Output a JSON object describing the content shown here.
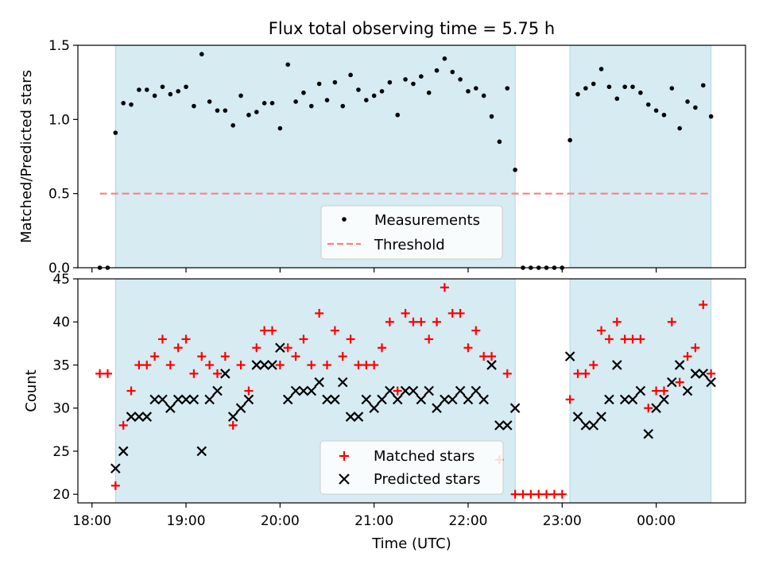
{
  "colors": {
    "band": "#add8e6",
    "measurement": "#000000",
    "threshold": "#ff7f7f",
    "matched": "#ff0000",
    "predicted": "#000000"
  },
  "chart_data": [
    {
      "type": "scatter",
      "title": "Flux total observing time = 5.75 h",
      "xlabel": "",
      "ylabel": "Matched/Predicted stars",
      "xlim": [
        "17:51",
        "00:57"
      ],
      "ylim": [
        0,
        1.5
      ],
      "yticks": [
        "0.0",
        "0.5",
        "1.0",
        "1.5"
      ],
      "legend_position": "lower center",
      "bands": [
        [
          "18:15",
          "22:30"
        ],
        [
          "23:05",
          "00:35"
        ]
      ],
      "threshold": {
        "name": "Threshold",
        "style": "dashed",
        "y": 0.5,
        "x": [
          "18:05",
          "00:35"
        ]
      },
      "series": [
        {
          "name": "Measurements",
          "style": "dot",
          "x": [
            "18:05",
            "18:10",
            "18:15",
            "18:20",
            "18:25",
            "18:30",
            "18:35",
            "18:40",
            "18:45",
            "18:50",
            "18:55",
            "19:00",
            "19:05",
            "19:10",
            "19:15",
            "19:20",
            "19:25",
            "19:30",
            "19:35",
            "19:40",
            "19:45",
            "19:50",
            "19:55",
            "20:00",
            "20:05",
            "20:10",
            "20:15",
            "20:20",
            "20:25",
            "20:30",
            "20:35",
            "20:40",
            "20:45",
            "20:50",
            "20:55",
            "21:00",
            "21:05",
            "21:10",
            "21:15",
            "21:20",
            "21:25",
            "21:30",
            "21:35",
            "21:40",
            "21:45",
            "21:50",
            "21:55",
            "22:00",
            "22:05",
            "22:10",
            "22:15",
            "22:20",
            "22:25",
            "22:30",
            "22:35",
            "22:40",
            "22:45",
            "22:50",
            "22:55",
            "23:00",
            "23:05",
            "23:10",
            "23:15",
            "23:20",
            "23:25",
            "23:30",
            "23:35",
            "23:40",
            "23:45",
            "23:50",
            "23:55",
            "00:00",
            "00:05",
            "00:10",
            "00:15",
            "00:20",
            "00:25",
            "00:30",
            "00:35"
          ],
          "y": [
            0.0,
            0.0,
            0.91,
            1.11,
            1.1,
            1.2,
            1.2,
            1.16,
            1.22,
            1.17,
            1.19,
            1.22,
            1.09,
            1.44,
            1.12,
            1.06,
            1.06,
            0.96,
            1.16,
            1.03,
            1.05,
            1.11,
            1.11,
            0.94,
            1.37,
            1.12,
            1.18,
            1.09,
            1.24,
            1.13,
            1.25,
            1.09,
            1.3,
            1.2,
            1.13,
            1.16,
            1.19,
            1.25,
            1.03,
            1.27,
            1.24,
            1.29,
            1.18,
            1.33,
            1.41,
            1.32,
            1.27,
            1.19,
            1.21,
            1.16,
            1.02,
            0.85,
            1.21,
            0.66,
            0.0,
            0.0,
            0.0,
            0.0,
            0.0,
            0.0,
            0.86,
            1.17,
            1.21,
            1.24,
            1.34,
            1.22,
            1.14,
            1.22,
            1.22,
            1.18,
            1.1,
            1.06,
            1.03,
            1.21,
            0.94,
            1.12,
            1.08,
            1.23,
            1.02
          ]
        }
      ]
    },
    {
      "type": "scatter",
      "title": "",
      "xlabel": "Time (UTC)",
      "ylabel": "Count",
      "xlim": [
        "17:51",
        "00:57"
      ],
      "ylim": [
        19,
        45
      ],
      "xticks": [
        "18:00",
        "19:00",
        "20:00",
        "21:00",
        "22:00",
        "23:00",
        "00:00"
      ],
      "yticks": [
        "20",
        "25",
        "30",
        "35",
        "40",
        "45"
      ],
      "legend_position": "lower center",
      "bands": [
        [
          "18:15",
          "22:30"
        ],
        [
          "23:05",
          "00:35"
        ]
      ],
      "series": [
        {
          "name": "Matched stars",
          "style": "plus",
          "x": [
            "18:05",
            "18:10",
            "18:15",
            "18:20",
            "18:25",
            "18:30",
            "18:35",
            "18:40",
            "18:45",
            "18:50",
            "18:55",
            "19:00",
            "19:05",
            "19:10",
            "19:15",
            "19:20",
            "19:25",
            "19:30",
            "19:35",
            "19:40",
            "19:45",
            "19:50",
            "19:55",
            "20:00",
            "20:05",
            "20:10",
            "20:15",
            "20:20",
            "20:25",
            "20:30",
            "20:35",
            "20:40",
            "20:45",
            "20:50",
            "20:55",
            "21:00",
            "21:05",
            "21:10",
            "21:15",
            "21:20",
            "21:25",
            "21:30",
            "21:35",
            "21:40",
            "21:45",
            "21:50",
            "21:55",
            "22:00",
            "22:05",
            "22:10",
            "22:15",
            "22:20",
            "22:25",
            "22:30",
            "22:35",
            "22:40",
            "22:45",
            "22:50",
            "22:55",
            "23:00",
            "23:05",
            "23:10",
            "23:15",
            "23:20",
            "23:25",
            "23:30",
            "23:35",
            "23:40",
            "23:45",
            "23:50",
            "23:55",
            "00:00",
            "00:05",
            "00:10",
            "00:15",
            "00:20",
            "00:25",
            "00:30",
            "00:35"
          ],
          "y": [
            34,
            34,
            21,
            28,
            32,
            35,
            35,
            36,
            38,
            35,
            37,
            38,
            34,
            36,
            35,
            34,
            36,
            28,
            35,
            32,
            37,
            39,
            39,
            35,
            37,
            36,
            38,
            35,
            41,
            35,
            39,
            36,
            38,
            35,
            35,
            35,
            37,
            40,
            32,
            41,
            40,
            40,
            38,
            40,
            44,
            41,
            41,
            37,
            39,
            36,
            36,
            24,
            34,
            20,
            20,
            20,
            20,
            20,
            20,
            20,
            31,
            34,
            34,
            35,
            39,
            38,
            40,
            38,
            38,
            38,
            30,
            32,
            32,
            40,
            33,
            36,
            37,
            42,
            34
          ]
        },
        {
          "name": "Predicted stars",
          "style": "x",
          "x": [
            "18:15",
            "18:20",
            "18:25",
            "18:30",
            "18:35",
            "18:40",
            "18:45",
            "18:50",
            "18:55",
            "19:00",
            "19:05",
            "19:10",
            "19:15",
            "19:20",
            "19:25",
            "19:30",
            "19:35",
            "19:40",
            "19:45",
            "19:50",
            "19:55",
            "20:00",
            "20:05",
            "20:10",
            "20:15",
            "20:20",
            "20:25",
            "20:30",
            "20:35",
            "20:40",
            "20:45",
            "20:50",
            "20:55",
            "21:00",
            "21:05",
            "21:10",
            "21:15",
            "21:20",
            "21:25",
            "21:30",
            "21:35",
            "21:40",
            "21:45",
            "21:50",
            "21:55",
            "22:00",
            "22:05",
            "22:10",
            "22:15",
            "22:20",
            "22:25",
            "22:30",
            "23:05",
            "23:10",
            "23:15",
            "23:20",
            "23:25",
            "23:30",
            "23:35",
            "23:40",
            "23:45",
            "23:50",
            "23:55",
            "00:00",
            "00:05",
            "00:10",
            "00:15",
            "00:20",
            "00:25",
            "00:30",
            "00:35"
          ],
          "y": [
            23,
            25,
            29,
            29,
            29,
            31,
            31,
            30,
            31,
            31,
            31,
            25,
            31,
            32,
            34,
            29,
            30,
            31,
            35,
            35,
            35,
            37,
            31,
            32,
            32,
            32,
            33,
            31,
            31,
            33,
            29,
            29,
            31,
            30,
            31,
            32,
            31,
            32,
            32,
            31,
            32,
            30,
            31,
            31,
            32,
            31,
            32,
            31,
            35,
            28,
            28,
            30,
            36,
            29,
            28,
            28,
            29,
            31,
            35,
            31,
            31,
            32,
            27,
            30,
            31,
            33,
            35,
            32,
            34,
            34,
            33
          ]
        }
      ]
    }
  ]
}
